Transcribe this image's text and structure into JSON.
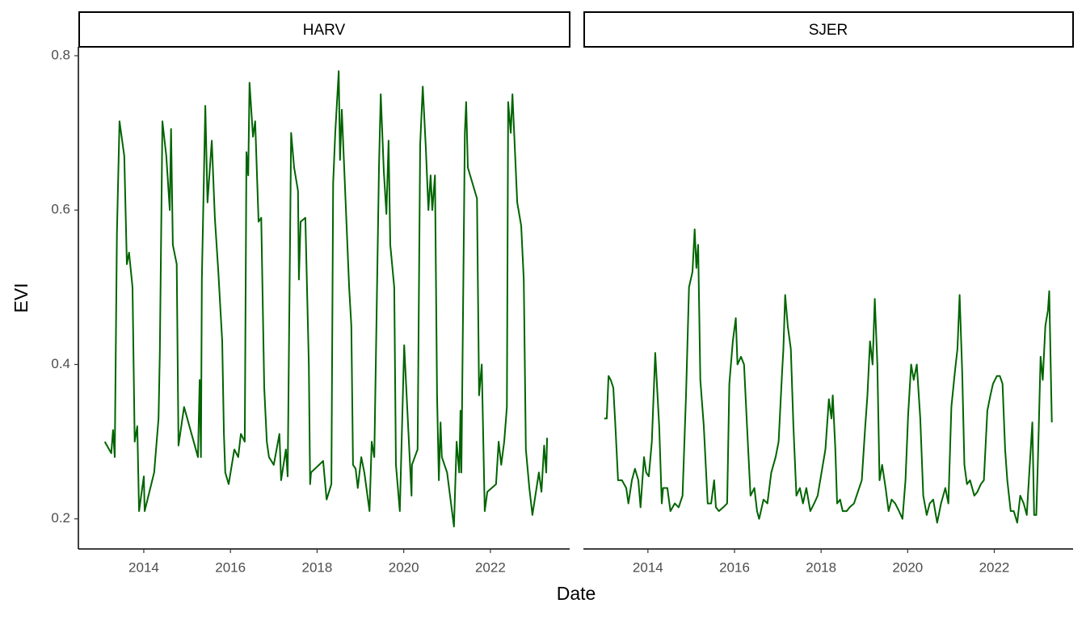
{
  "chart_data": [
    {
      "type": "line",
      "title": "HARV",
      "xlabel": "Date",
      "ylabel": "EVI",
      "color": "#006400",
      "xlim": [
        2012.49,
        2023.83
      ],
      "ylim": [
        0.161,
        0.8115
      ],
      "xticks": [
        2014,
        2016,
        2018,
        2020,
        2022
      ],
      "yticks": [
        0.2,
        0.4,
        0.6,
        0.8
      ],
      "x": [
        2013.1,
        2013.25,
        2013.29,
        2013.33,
        2013.38,
        2013.44,
        2013.55,
        2013.61,
        2013.66,
        2013.74,
        2013.79,
        2013.85,
        2013.89,
        2014.0,
        2014.02,
        2014.24,
        2014.34,
        2014.37,
        2014.43,
        2014.52,
        2014.6,
        2014.63,
        2014.67,
        2014.76,
        2014.8,
        2014.93,
        2015.25,
        2015.29,
        2015.32,
        2015.34,
        2015.42,
        2015.47,
        2015.57,
        2015.64,
        2015.72,
        2015.81,
        2015.85,
        2015.88,
        2015.96,
        2016.09,
        2016.18,
        2016.24,
        2016.33,
        2016.37,
        2016.41,
        2016.44,
        2016.52,
        2016.57,
        2016.65,
        2016.71,
        2016.78,
        2016.84,
        2016.89,
        2017.0,
        2017.13,
        2017.17,
        2017.28,
        2017.32,
        2017.4,
        2017.47,
        2017.56,
        2017.58,
        2017.62,
        2017.73,
        2017.81,
        2017.84,
        2017.86,
        2018.14,
        2018.22,
        2018.33,
        2018.37,
        2018.42,
        2018.5,
        2018.53,
        2018.57,
        2018.74,
        2018.79,
        2018.83,
        2018.89,
        2018.94,
        2019.02,
        2019.09,
        2019.21,
        2019.26,
        2019.32,
        2019.43,
        2019.47,
        2019.54,
        2019.6,
        2019.65,
        2019.69,
        2019.78,
        2019.82,
        2019.91,
        2020.01,
        2020.18,
        2020.19,
        2020.32,
        2020.38,
        2020.44,
        2020.51,
        2020.57,
        2020.62,
        2020.66,
        2020.72,
        2020.77,
        2020.81,
        2020.85,
        2020.88,
        2021.0,
        2021.16,
        2021.22,
        2021.28,
        2021.31,
        2021.33,
        2021.41,
        2021.44,
        2021.48,
        2021.69,
        2021.74,
        2021.8,
        2021.87,
        2021.93,
        2022.13,
        2022.19,
        2022.25,
        2022.32,
        2022.38,
        2022.41,
        2022.47,
        2022.51,
        2022.62,
        2022.71,
        2022.77,
        2022.82,
        2022.9,
        2022.97,
        2023.12,
        2023.18,
        2023.24,
        2023.29,
        2023.31
      ],
      "values": [
        0.3,
        0.285,
        0.315,
        0.28,
        0.57,
        0.715,
        0.67,
        0.53,
        0.545,
        0.5,
        0.3,
        0.32,
        0.21,
        0.255,
        0.21,
        0.26,
        0.33,
        0.415,
        0.715,
        0.67,
        0.6,
        0.705,
        0.555,
        0.53,
        0.295,
        0.345,
        0.28,
        0.38,
        0.28,
        0.51,
        0.735,
        0.61,
        0.69,
        0.59,
        0.52,
        0.43,
        0.31,
        0.26,
        0.245,
        0.29,
        0.28,
        0.31,
        0.3,
        0.675,
        0.645,
        0.765,
        0.695,
        0.715,
        0.585,
        0.59,
        0.37,
        0.3,
        0.28,
        0.27,
        0.31,
        0.25,
        0.29,
        0.255,
        0.7,
        0.655,
        0.625,
        0.51,
        0.585,
        0.59,
        0.4,
        0.245,
        0.26,
        0.275,
        0.225,
        0.245,
        0.635,
        0.7,
        0.78,
        0.665,
        0.73,
        0.5,
        0.45,
        0.27,
        0.265,
        0.24,
        0.28,
        0.26,
        0.21,
        0.3,
        0.28,
        0.66,
        0.75,
        0.65,
        0.595,
        0.69,
        0.555,
        0.5,
        0.27,
        0.21,
        0.425,
        0.23,
        0.27,
        0.29,
        0.685,
        0.76,
        0.68,
        0.6,
        0.645,
        0.6,
        0.645,
        0.36,
        0.25,
        0.325,
        0.28,
        0.26,
        0.19,
        0.3,
        0.26,
        0.34,
        0.26,
        0.7,
        0.74,
        0.655,
        0.615,
        0.36,
        0.4,
        0.21,
        0.235,
        0.245,
        0.3,
        0.27,
        0.3,
        0.345,
        0.74,
        0.7,
        0.75,
        0.61,
        0.58,
        0.51,
        0.29,
        0.24,
        0.205,
        0.26,
        0.235,
        0.295,
        0.26,
        0.305
      ]
    },
    {
      "type": "line",
      "title": "SJER",
      "color": "#006400",
      "xlim": [
        2012.51,
        2023.82
      ],
      "ylim": [
        0.161,
        0.8115
      ],
      "xticks": [
        2014,
        2016,
        2018,
        2020,
        2022
      ],
      "x": [
        2012.99,
        2013.05,
        2013.09,
        2013.14,
        2013.2,
        2013.25,
        2013.31,
        2013.4,
        2013.5,
        2013.55,
        2013.63,
        2013.7,
        2013.78,
        2013.83,
        2013.91,
        2013.96,
        2014.02,
        2014.09,
        2014.17,
        2014.26,
        2014.32,
        2014.35,
        2014.45,
        2014.52,
        2014.62,
        2014.71,
        2014.8,
        2014.88,
        2014.95,
        2015.03,
        2015.08,
        2015.12,
        2015.16,
        2015.21,
        2015.29,
        2015.38,
        2015.46,
        2015.53,
        2015.57,
        2015.64,
        2015.74,
        2015.83,
        2015.88,
        2015.96,
        2016.03,
        2016.07,
        2016.15,
        2016.22,
        2016.29,
        2016.37,
        2016.46,
        2016.52,
        2016.57,
        2016.67,
        2016.76,
        2016.85,
        2016.95,
        2017.02,
        2017.1,
        2017.13,
        2017.17,
        2017.23,
        2017.3,
        2017.36,
        2017.43,
        2017.51,
        2017.58,
        2017.66,
        2017.75,
        2017.84,
        2017.92,
        2018.01,
        2018.1,
        2018.18,
        2018.24,
        2018.27,
        2018.33,
        2018.37,
        2018.44,
        2018.5,
        2018.59,
        2018.66,
        2018.76,
        2018.85,
        2018.94,
        2019.02,
        2019.07,
        2019.13,
        2019.19,
        2019.24,
        2019.3,
        2019.35,
        2019.41,
        2019.49,
        2019.56,
        2019.63,
        2019.71,
        2019.8,
        2019.88,
        2019.95,
        2020.01,
        2020.08,
        2020.14,
        2020.21,
        2020.29,
        2020.36,
        2020.44,
        2020.51,
        2020.59,
        2020.68,
        2020.77,
        2020.87,
        2020.94,
        2021.01,
        2021.09,
        2021.15,
        2021.2,
        2021.26,
        2021.31,
        2021.37,
        2021.44,
        2021.54,
        2021.61,
        2021.69,
        2021.76,
        2021.84,
        2021.91,
        2021.97,
        2022.06,
        2022.13,
        2022.19,
        2022.25,
        2022.3,
        2022.38,
        2022.45,
        2022.53,
        2022.6,
        2022.68,
        2022.75,
        2022.82,
        2022.88,
        2022.92,
        2022.97,
        2023.01,
        2023.07,
        2023.12,
        2023.18,
        2023.24,
        2023.27,
        2023.33
      ],
      "values": [
        0.33,
        0.33,
        0.385,
        0.38,
        0.37,
        0.32,
        0.25,
        0.25,
        0.24,
        0.22,
        0.25,
        0.265,
        0.25,
        0.215,
        0.28,
        0.26,
        0.255,
        0.3,
        0.415,
        0.32,
        0.22,
        0.24,
        0.24,
        0.21,
        0.22,
        0.215,
        0.23,
        0.36,
        0.5,
        0.52,
        0.575,
        0.525,
        0.555,
        0.38,
        0.32,
        0.22,
        0.22,
        0.25,
        0.215,
        0.21,
        0.215,
        0.22,
        0.375,
        0.43,
        0.46,
        0.4,
        0.41,
        0.4,
        0.32,
        0.23,
        0.24,
        0.21,
        0.2,
        0.225,
        0.22,
        0.26,
        0.28,
        0.3,
        0.39,
        0.42,
        0.49,
        0.45,
        0.42,
        0.32,
        0.23,
        0.24,
        0.22,
        0.24,
        0.21,
        0.22,
        0.23,
        0.26,
        0.29,
        0.355,
        0.33,
        0.36,
        0.29,
        0.22,
        0.225,
        0.21,
        0.21,
        0.215,
        0.22,
        0.235,
        0.25,
        0.32,
        0.36,
        0.43,
        0.4,
        0.485,
        0.4,
        0.25,
        0.27,
        0.24,
        0.21,
        0.225,
        0.22,
        0.21,
        0.2,
        0.25,
        0.335,
        0.4,
        0.38,
        0.4,
        0.33,
        0.23,
        0.205,
        0.22,
        0.225,
        0.195,
        0.22,
        0.24,
        0.22,
        0.345,
        0.39,
        0.42,
        0.49,
        0.39,
        0.27,
        0.245,
        0.25,
        0.23,
        0.235,
        0.245,
        0.25,
        0.34,
        0.36,
        0.375,
        0.385,
        0.385,
        0.375,
        0.29,
        0.25,
        0.21,
        0.21,
        0.195,
        0.23,
        0.22,
        0.205,
        0.27,
        0.325,
        0.205,
        0.205,
        0.28,
        0.41,
        0.38,
        0.45,
        0.47,
        0.495,
        0.325
      ]
    }
  ]
}
